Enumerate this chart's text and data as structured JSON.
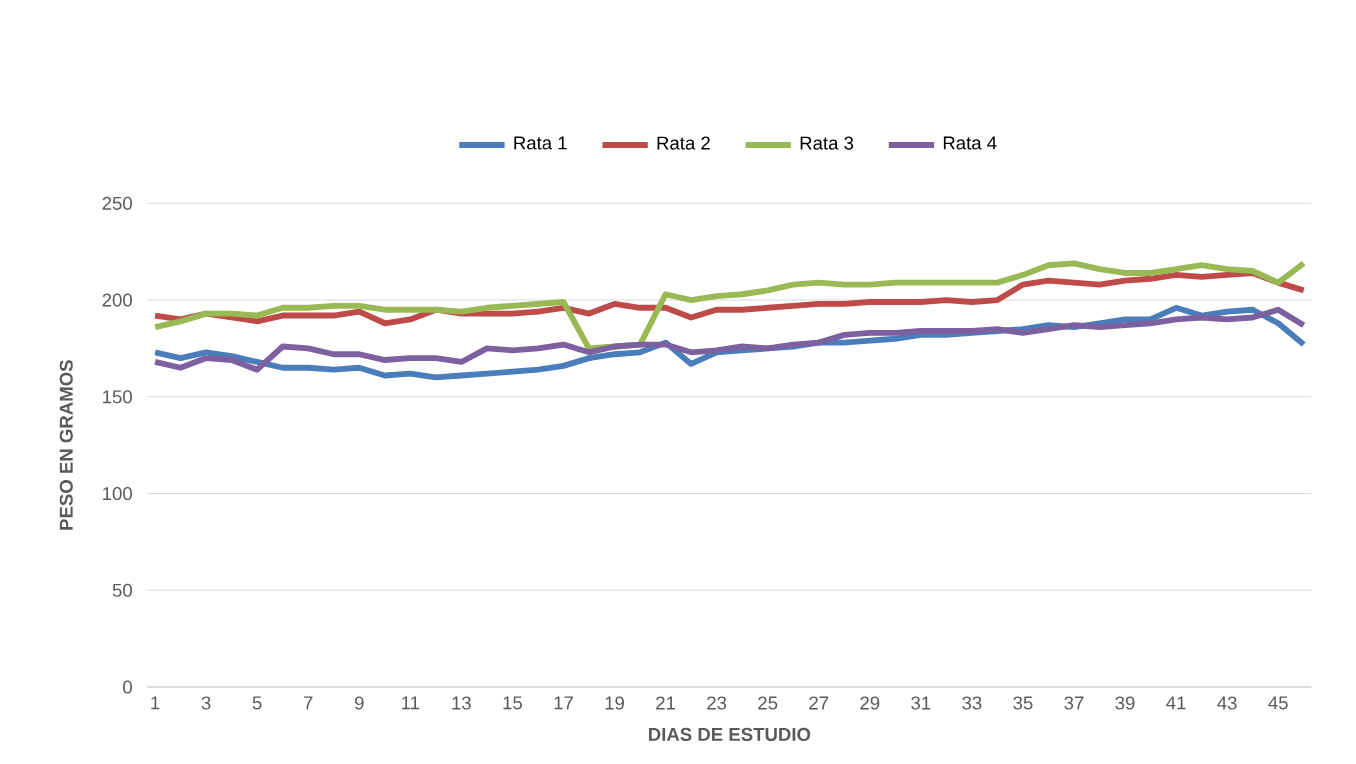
{
  "chart_data": {
    "type": "line",
    "xlabel": "DIAS DE ESTUDIO",
    "ylabel": "PESO EN GRAMOS",
    "categories": [
      "1",
      null,
      "3",
      null,
      "5",
      null,
      "7",
      null,
      "9",
      null,
      "11",
      null,
      "13",
      null,
      "15",
      null,
      "17",
      null,
      "19",
      null,
      "21",
      null,
      "23",
      null,
      "25",
      null,
      "27",
      null,
      "29",
      null,
      "31",
      null,
      "33",
      null,
      "35",
      null,
      "37",
      null,
      "39",
      null,
      "41",
      null,
      "43",
      null,
      "45",
      null
    ],
    "series": [
      {
        "name": "Rata 1",
        "color": "#4a7ebb",
        "values": [
          173,
          170,
          173,
          171,
          168,
          165,
          165,
          164,
          165,
          161,
          162,
          160,
          161,
          162,
          163,
          164,
          166,
          170,
          172,
          173,
          178,
          167,
          173,
          174,
          175,
          176,
          178,
          178,
          179,
          180,
          182,
          182,
          183,
          184,
          185,
          187,
          186,
          188,
          190,
          190,
          196,
          192,
          194,
          195,
          188,
          177
        ]
      },
      {
        "name": "Rata 2",
        "color": "#be4b48",
        "values": [
          192,
          190,
          193,
          191,
          189,
          192,
          192,
          192,
          194,
          188,
          190,
          195,
          193,
          193,
          193,
          194,
          196,
          193,
          198,
          196,
          196,
          191,
          195,
          195,
          196,
          197,
          198,
          198,
          199,
          199,
          199,
          200,
          199,
          200,
          208,
          210,
          209,
          208,
          210,
          211,
          213,
          212,
          213,
          214,
          209,
          205
        ]
      },
      {
        "name": "Rata 3",
        "color": "#98b954",
        "values": [
          186,
          189,
          193,
          193,
          192,
          196,
          196,
          197,
          197,
          195,
          195,
          195,
          194,
          196,
          197,
          198,
          199,
          175,
          176,
          177,
          203,
          200,
          202,
          203,
          205,
          208,
          209,
          208,
          208,
          209,
          209,
          209,
          209,
          209,
          213,
          218,
          219,
          216,
          214,
          214,
          216,
          218,
          216,
          215,
          209,
          219
        ]
      },
      {
        "name": "Rata 4",
        "color": "#7d60a0",
        "values": [
          168,
          165,
          170,
          169,
          164,
          176,
          175,
          172,
          172,
          169,
          170,
          170,
          168,
          175,
          174,
          175,
          177,
          173,
          176,
          177,
          177,
          173,
          174,
          176,
          175,
          177,
          178,
          182,
          183,
          183,
          184,
          184,
          184,
          185,
          183,
          185,
          187,
          186,
          187,
          188,
          190,
          191,
          190,
          191,
          195,
          187
        ]
      }
    ],
    "ylim": [
      0,
      250
    ],
    "yticks": [
      0,
      50,
      100,
      150,
      200,
      250
    ],
    "grid": "y",
    "legend": "top",
    "marker": "none",
    "line_style": "solid"
  }
}
